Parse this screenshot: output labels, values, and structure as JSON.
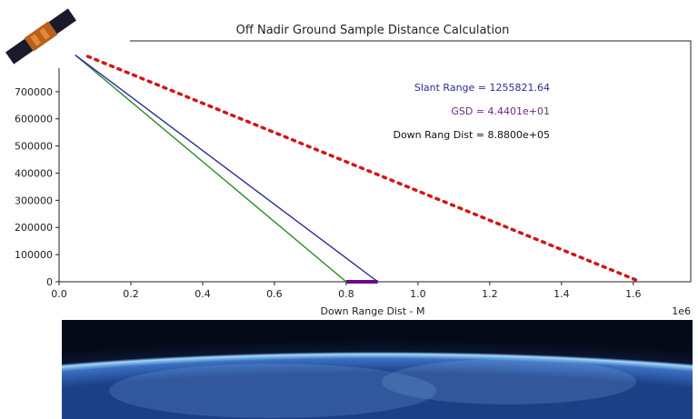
{
  "chart_data": {
    "type": "line",
    "title": "Off Nadir Ground Sample Distance Calculation",
    "xlabel": "Down Range Dist - M",
    "ylabel": "",
    "x_scale_label": "1e6",
    "xlim": [
      0,
      1760000
    ],
    "ylim": [
      0,
      887000
    ],
    "xticks": [
      0,
      200000,
      400000,
      600000,
      800000,
      1000000,
      1200000,
      1400000,
      1600000
    ],
    "xtick_labels": [
      "0.0",
      "0.2",
      "0.4",
      "0.6",
      "0.8",
      "1.0",
      "1.2",
      "1.4",
      "1.6"
    ],
    "yticks": [
      0,
      100000,
      200000,
      300000,
      400000,
      500000,
      600000,
      700000
    ],
    "ytick_labels": [
      "0",
      "100000",
      "200000",
      "300000",
      "400000",
      "500000",
      "600000",
      "700000"
    ],
    "grid": false,
    "series": [
      {
        "style": "solid",
        "color": "#2a8a2a",
        "x": [
          45000,
          800000
        ],
        "y": [
          835000,
          0
        ]
      },
      {
        "style": "solid",
        "color": "#2a2aa0",
        "x": [
          45000,
          888000
        ],
        "y": [
          835000,
          0
        ]
      },
      {
        "style": "dotted",
        "color": "#d41515",
        "x": [
          80000,
          1620000
        ],
        "y": [
          830000,
          0
        ]
      },
      {
        "style": "thick",
        "color": "#6a0a8a",
        "x": [
          800000,
          888000
        ],
        "y": [
          0,
          0
        ]
      }
    ],
    "annotations": [
      {
        "text": "Slant Range = 1255821.64",
        "color": "#2b2b9a"
      },
      {
        "text": "GSD = 4.4401e+01",
        "color": "#6a2a80"
      },
      {
        "text": "Down Rang Dist = 8.8800e+05",
        "color": "#111111"
      }
    ]
  },
  "decorations": {
    "satellite": "satellite-icon",
    "earth": "earth-image"
  }
}
